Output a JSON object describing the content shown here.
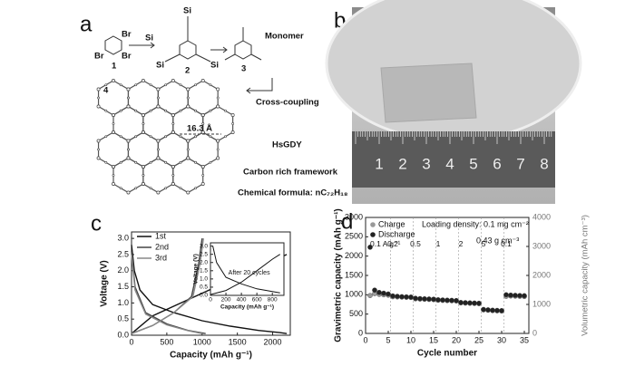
{
  "panels": {
    "a": {
      "letter": "a",
      "reagent": "Si",
      "molecule_1": {
        "label": "1",
        "substituents": [
          "Br",
          "Br",
          "Br"
        ]
      },
      "molecule_2": {
        "label": "2",
        "substituents": [
          "Si",
          "Si",
          "Si"
        ]
      },
      "molecule_3": {
        "label": "3"
      },
      "molecule_4": {
        "label": "4"
      },
      "monomer": "Monomer",
      "cross_coupling": "Cross-coupling",
      "pore_size": "16.3 Å",
      "name": "HsGDY",
      "description": "Carbon rich framework",
      "formula": "Chemical formula: nC₇₂H₁₈"
    },
    "b": {
      "letter": "b",
      "ruler_labels": [
        "1",
        "2",
        "3",
        "4",
        "5",
        "6",
        "7",
        "8"
      ]
    },
    "c": {
      "letter": "c"
    },
    "d": {
      "letter": "d"
    }
  },
  "chart_data": [
    {
      "type": "line",
      "xlabel": "Capacity (mAh g⁻¹)",
      "ylabel": "Voltage (V)",
      "xlim": [
        0,
        2250
      ],
      "xticks": [
        0,
        500,
        1000,
        1500,
        2000
      ],
      "ylim": [
        0,
        3.2
      ],
      "yticks": [
        {
          "value": 0,
          "label": "0.0"
        },
        {
          "value": 0.5,
          "label": "0.5"
        },
        {
          "value": 1,
          "label": "1.0"
        },
        {
          "value": 1.5,
          "label": "1.5"
        },
        {
          "value": 2,
          "label": "2.0"
        },
        {
          "value": 2.5,
          "label": "2.5"
        },
        {
          "value": 3,
          "label": "3.0"
        }
      ],
      "legend": "upper left",
      "series": [
        {
          "name": "1st",
          "color": "#111111",
          "x": [
            0,
            40,
            120,
            300,
            600,
            1000,
            1400,
            1800,
            2100,
            2200,
            null,
            0,
            300,
            700,
            1100,
            1500,
            1900,
            2200
          ],
          "values": [
            2.8,
            2.0,
            1.4,
            0.95,
            0.7,
            0.45,
            0.28,
            0.15,
            0.08,
            0.05,
            null,
            0.05,
            0.6,
            1.0,
            1.4,
            1.8,
            2.2,
            2.5
          ]
        },
        {
          "name": "2nd",
          "color": "#444444",
          "x": [
            0,
            50,
            200,
            500,
            800,
            1050,
            null,
            0,
            300,
            600,
            850,
            950,
            1000
          ],
          "values": [
            2.6,
            1.5,
            0.7,
            0.35,
            0.15,
            0.05,
            null,
            0.05,
            0.3,
            0.7,
            1.2,
            2.2,
            3.0
          ]
        },
        {
          "name": "3rd",
          "color": "#888888",
          "x": [
            0,
            50,
            200,
            500,
            800,
            1000,
            null,
            0,
            300,
            600,
            870,
            970,
            1020
          ],
          "values": [
            2.5,
            1.4,
            0.65,
            0.32,
            0.14,
            0.05,
            null,
            0.05,
            0.3,
            0.7,
            1.2,
            2.2,
            3.0
          ]
        }
      ]
    },
    {
      "type": "line",
      "annotation": "After 20 cycles",
      "xlabel": "Capacity (mAh g⁻¹)",
      "ylabel": "Voltage (V)",
      "xlim": [
        0,
        950
      ],
      "xticks": [
        0,
        200,
        400,
        600,
        800
      ],
      "ylim": [
        0,
        3.2
      ],
      "yticks": [
        {
          "value": 0,
          "label": "0.0"
        },
        {
          "value": 0.5,
          "label": "0.5"
        },
        {
          "value": 1,
          "label": "1.0"
        },
        {
          "value": 1.5,
          "label": "1.5"
        },
        {
          "value": 2,
          "label": "2.0"
        },
        {
          "value": 2.5,
          "label": "2.5"
        },
        {
          "value": 3,
          "label": "3.0"
        }
      ],
      "series": [
        {
          "color": "#111111",
          "x": [
            30,
            80,
            200,
            400,
            600,
            900,
            null,
            0,
            200,
            400,
            600,
            800,
            900
          ],
          "values": [
            3.0,
            2.0,
            1.1,
            0.7,
            0.4,
            0.15,
            null,
            0.05,
            0.3,
            0.8,
            1.5,
            2.2,
            2.5
          ]
        }
      ]
    },
    {
      "type": "scatter",
      "xlabel": "Cycle number",
      "ylabel": "Gravimetric capacity (mAh g⁻¹)",
      "y2label": "Volumetric capacity (mAh cm⁻³)",
      "annotations": [
        "Loading density: 0.1 mg cm⁻²",
        "0.43 g cm⁻³"
      ],
      "xlim": [
        0,
        36
      ],
      "xticks": [
        0,
        5,
        10,
        15,
        20,
        25,
        30,
        35
      ],
      "ylim": [
        0,
        3000
      ],
      "yticks": [
        0,
        500,
        1000,
        1500,
        2000,
        2500,
        3000
      ],
      "y2lim": [
        0,
        4000
      ],
      "y2ticks": [
        0,
        1000,
        2000,
        3000,
        4000
      ],
      "legend": "upper left",
      "rate_segments": [
        {
          "label": "0.1 A g⁻¹",
          "start": 1,
          "end": 5
        },
        {
          "label": "0.2",
          "start": 6,
          "end": 10
        },
        {
          "label": "0.5",
          "start": 11,
          "end": 15
        },
        {
          "label": "1",
          "start": 16,
          "end": 20
        },
        {
          "label": "2",
          "start": 21,
          "end": 25
        },
        {
          "label": "5",
          "start": 26,
          "end": 30
        },
        {
          "label": "0.1",
          "start": 31,
          "end": 35
        }
      ],
      "x": [
        1,
        2,
        3,
        4,
        5,
        6,
        7,
        8,
        9,
        10,
        11,
        12,
        13,
        14,
        15,
        16,
        17,
        18,
        19,
        20,
        21,
        22,
        23,
        24,
        25,
        26,
        27,
        28,
        29,
        30,
        31,
        32,
        33,
        34,
        35
      ],
      "series": [
        {
          "name": "Charge",
          "color": "#999999",
          "values": [
            980,
            1030,
            1010,
            1000,
            990,
            950,
            945,
            940,
            935,
            930,
            895,
            890,
            885,
            880,
            875,
            860,
            855,
            850,
            845,
            840,
            790,
            785,
            780,
            775,
            770,
            610,
            600,
            590,
            585,
            580,
            960,
            970,
            965,
            960,
            955
          ]
        },
        {
          "name": "Discharge",
          "color": "#222222",
          "values": [
            2230,
            1120,
            1060,
            1040,
            1020,
            970,
            960,
            950,
            945,
            940,
            910,
            900,
            895,
            890,
            885,
            870,
            865,
            860,
            855,
            850,
            800,
            795,
            790,
            785,
            780,
            620,
            610,
            600,
            595,
            590,
            1000,
            990,
            985,
            980,
            975
          ]
        }
      ]
    }
  ]
}
